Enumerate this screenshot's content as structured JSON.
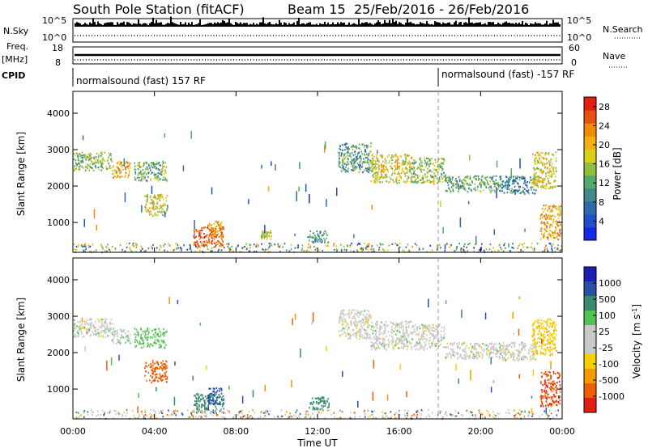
{
  "header": {
    "station": "South Pole Station (fitACF)",
    "beam": "Beam 15",
    "date_range": "25/Feb/2016 - 26/Feb/2016"
  },
  "top_panels": {
    "nsky_label": "N.Sky",
    "nsky_ticks": [
      "10^5",
      "10^0"
    ],
    "nsearch_label": "N.Search",
    "nsearch_ticks": [
      "10^5",
      "10^0"
    ],
    "freq_label": "Freq.",
    "freq_unit": "[MHz]",
    "freq_ticks": [
      "18",
      "8"
    ],
    "nave_label": "Nave",
    "nave_ticks": [
      "60",
      "0"
    ],
    "cpid_label": "CPID",
    "cpid_segments": [
      {
        "label": "normalsound (fast) 157 RF",
        "start_hour": 0
      },
      {
        "label": "normalsound (fast) -157 RF",
        "start_hour": 18
      }
    ]
  },
  "colors": {
    "power_scale": [
      "#1428e6",
      "#2050c8",
      "#2f6aa8",
      "#3f8a88",
      "#55a96a",
      "#90c03a",
      "#d8d01a",
      "#f0b010",
      "#f08a08",
      "#e85010",
      "#e02010"
    ],
    "velocity_scale": [
      "#1e1eb4",
      "#2a4fa8",
      "#3a8a70",
      "#52c252",
      "#c8c8c8",
      "#c8c8c8",
      "#f4d000",
      "#f49a00",
      "#f06000",
      "#e02010"
    ]
  },
  "chart_data": [
    {
      "type": "heatmap",
      "name_on_chart": "Power [dB]",
      "xlabel": "Time UT",
      "ylabel": "Slant Range [km]",
      "x_ticks": [
        "00:00",
        "04:00",
        "08:00",
        "12:00",
        "16:00",
        "20:00",
        "00:00"
      ],
      "x_range_hours": [
        0,
        24
      ],
      "y_ticks": [
        1000,
        2000,
        3000,
        4000
      ],
      "y_range_km": [
        180,
        4600
      ],
      "colorbar_label": "Power [dB]",
      "colorbar_ticks": [
        "28",
        "24",
        "20",
        "16",
        "12",
        "8",
        "4"
      ],
      "colorbar_range": [
        0,
        30
      ],
      "echo_regions": [
        {
          "t": [
            0.0,
            1.9
          ],
          "r": [
            2450,
            2950
          ],
          "value": 14
        },
        {
          "t": [
            1.9,
            2.8
          ],
          "r": [
            2250,
            2700
          ],
          "value": 22
        },
        {
          "t": [
            3.0,
            4.6
          ],
          "r": [
            2150,
            2700
          ],
          "value": 12
        },
        {
          "t": [
            3.5,
            4.6
          ],
          "r": [
            1200,
            1800
          ],
          "value": 18
        },
        {
          "t": [
            5.9,
            7.4
          ],
          "r": [
            350,
            900
          ],
          "value": 28
        },
        {
          "t": [
            6.6,
            7.3
          ],
          "r": [
            600,
            1050
          ],
          "value": 22
        },
        {
          "t": [
            9.2,
            9.7
          ],
          "r": [
            550,
            800
          ],
          "value": 16
        },
        {
          "t": [
            11.5,
            12.5
          ],
          "r": [
            450,
            800
          ],
          "value": 10
        },
        {
          "t": [
            13.0,
            14.6
          ],
          "r": [
            2400,
            3200
          ],
          "value": 10
        },
        {
          "t": [
            14.6,
            16.6
          ],
          "r": [
            2100,
            2900
          ],
          "value": 18
        },
        {
          "t": [
            16.6,
            18.2
          ],
          "r": [
            2100,
            2800
          ],
          "value": 14
        },
        {
          "t": [
            18.2,
            20.9
          ],
          "r": [
            1850,
            2300
          ],
          "value": 12
        },
        {
          "t": [
            20.9,
            22.7
          ],
          "r": [
            1800,
            2300
          ],
          "value": 8
        },
        {
          "t": [
            22.5,
            23.7
          ],
          "r": [
            1950,
            2950
          ],
          "value": 18
        },
        {
          "t": [
            22.9,
            23.9
          ],
          "r": [
            550,
            1500
          ],
          "value": 22
        },
        {
          "t": [
            0.0,
            24.0
          ],
          "r": [
            200,
            450
          ],
          "value": 10
        }
      ]
    },
    {
      "type": "heatmap",
      "name_on_chart": "Velocity [m s^-1]",
      "xlabel": "Time UT",
      "ylabel": "Slant Range [km]",
      "x_ticks": [
        "00:00",
        "04:00",
        "08:00",
        "12:00",
        "16:00",
        "20:00",
        "00:00"
      ],
      "x_range_hours": [
        0,
        24
      ],
      "y_ticks": [
        1000,
        2000,
        3000,
        4000
      ],
      "y_range_km": [
        180,
        4600
      ],
      "colorbar_label": "Velocity",
      "colorbar_unit": "[m s",
      "colorbar_unit_exp": "-1",
      "colorbar_unit_close": "]",
      "colorbar_ticks": [
        "1000",
        "500",
        "100",
        "25",
        "-25",
        "-100",
        "-500",
        "-1000"
      ],
      "echo_regions": [
        {
          "t": [
            0.0,
            1.9
          ],
          "r": [
            2450,
            2950
          ],
          "value": 0
        },
        {
          "t": [
            1.9,
            2.8
          ],
          "r": [
            2250,
            2700
          ],
          "value": 10
        },
        {
          "t": [
            3.0,
            4.6
          ],
          "r": [
            2150,
            2700
          ],
          "value": 40
        },
        {
          "t": [
            3.5,
            4.6
          ],
          "r": [
            1200,
            1800
          ],
          "value": -600
        },
        {
          "t": [
            5.9,
            7.4
          ],
          "r": [
            350,
            900
          ],
          "value": 200
        },
        {
          "t": [
            6.6,
            7.3
          ],
          "r": [
            600,
            1050
          ],
          "value": 500
        },
        {
          "t": [
            11.5,
            12.5
          ],
          "r": [
            450,
            800
          ],
          "value": 150
        },
        {
          "t": [
            13.0,
            14.6
          ],
          "r": [
            2400,
            3200
          ],
          "value": 0
        },
        {
          "t": [
            14.6,
            16.6
          ],
          "r": [
            2100,
            2900
          ],
          "value": 0
        },
        {
          "t": [
            16.6,
            18.2
          ],
          "r": [
            2100,
            2800
          ],
          "value": 0
        },
        {
          "t": [
            18.2,
            20.9
          ],
          "r": [
            1850,
            2300
          ],
          "value": 0
        },
        {
          "t": [
            20.9,
            22.7
          ],
          "r": [
            1800,
            2300
          ],
          "value": 0
        },
        {
          "t": [
            22.5,
            23.7
          ],
          "r": [
            1950,
            2950
          ],
          "value": -80
        },
        {
          "t": [
            22.9,
            23.9
          ],
          "r": [
            550,
            1500
          ],
          "value": -700
        },
        {
          "t": [
            0.0,
            24.0
          ],
          "r": [
            200,
            450
          ],
          "value": 0
        }
      ]
    }
  ]
}
